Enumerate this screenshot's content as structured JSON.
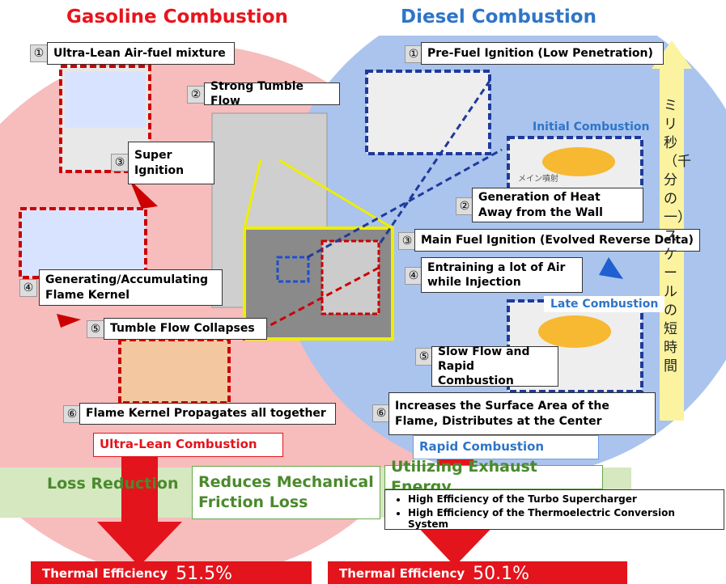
{
  "gasoline": {
    "title": "Gasoline Combustion",
    "steps": [
      {
        "number": "①",
        "text": "Ultra-Lean Air-fuel mixture"
      },
      {
        "number": "②",
        "text": "Strong Tumble Flow"
      },
      {
        "number": "③",
        "text": "Super Ignition"
      },
      {
        "number": "④",
        "text": "Generating/Accumulating Flame Kernel"
      },
      {
        "number": "⑤",
        "text": "Tumble Flow Collapses"
      },
      {
        "number": "⑥",
        "text": "Flame Kernel Propagates all together"
      }
    ],
    "result": "Ultra-Lean Combustion"
  },
  "diesel": {
    "title": "Diesel Combustion",
    "steps": [
      {
        "number": "①",
        "text": "Pre-Fuel Ignition (Low Penetration)"
      },
      {
        "number": "②",
        "text": "Generation of Heat Away from the Wall"
      },
      {
        "number": "③",
        "text": "Main Fuel Ignition (Evolved Reverse Delta)"
      },
      {
        "number": "④",
        "text": "Entraining a lot of Air while Injection"
      },
      {
        "number": "⑤",
        "text": "Slow Flow and Rapid Combustion"
      },
      {
        "number": "⑥",
        "text": "Increases the Surface Area of the Flame, Distributes at the Center"
      }
    ],
    "phases": [
      "Initial Combustion",
      "Late Combustion"
    ],
    "injection_label": "メイン噴射",
    "result": "Rapid Combustion"
  },
  "timescale": "ミリ秒（千分の一）スケールの短時間",
  "benefits": {
    "loss_reduction": "Loss Reduction",
    "friction": "Reduces Mechanical Friction Loss",
    "exhaust": "Utilizing Exhaust Energy",
    "exhaust_items": [
      "High Efficiency of the Turbo Supercharger",
      "High Efficiency of the Thermoelectric Conversion System"
    ]
  },
  "efficiency": [
    {
      "label": "Thermal Efficiency",
      "value": "51.5%"
    },
    {
      "label": "Thermal Efficiency",
      "value": "50.1%"
    }
  ]
}
